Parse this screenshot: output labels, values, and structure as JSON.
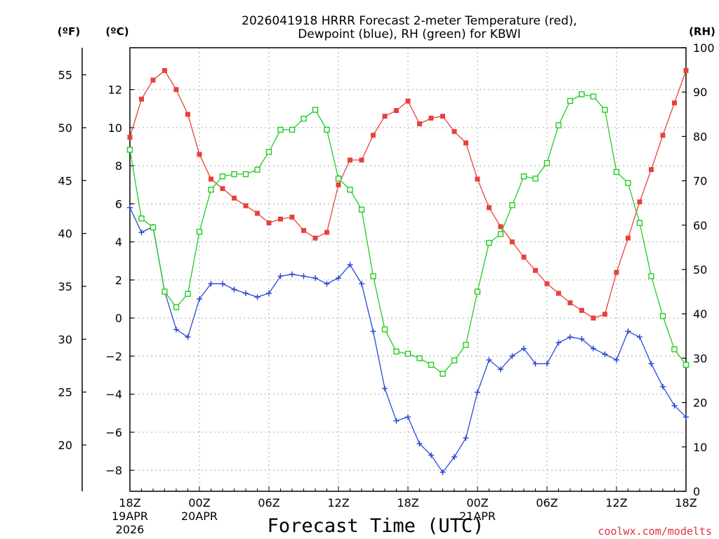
{
  "chart_data": {
    "type": "line",
    "title_lines": [
      "2026041918 HRRR Forecast 2-meter Temperature (red),",
      "Dewpoint (blue), RH (green) for KBWI"
    ],
    "xlabel": "Forecast Time (UTC)",
    "credit": "coolwx.com/modelts",
    "axis_units": {
      "f": "(ºF)",
      "c": "(ºC)",
      "rh": "(RH)"
    },
    "colors": {
      "temperature": "#e8413b",
      "dewpoint": "#2a48d8",
      "rh": "#22cc22",
      "grid": "#aaaaaa",
      "axis": "#000000"
    },
    "x_range_hours": [
      0,
      48
    ],
    "x_ticks": [
      {
        "hour": 0,
        "lines": [
          "18Z",
          "19APR",
          "2026"
        ]
      },
      {
        "hour": 6,
        "lines": [
          "00Z",
          "20APR"
        ]
      },
      {
        "hour": 12,
        "lines": [
          "06Z"
        ]
      },
      {
        "hour": 18,
        "lines": [
          "12Z"
        ]
      },
      {
        "hour": 24,
        "lines": [
          "18Z"
        ]
      },
      {
        "hour": 30,
        "lines": [
          "00Z",
          "21APR"
        ]
      },
      {
        "hour": 36,
        "lines": [
          "06Z"
        ]
      },
      {
        "hour": 42,
        "lines": [
          "12Z"
        ]
      },
      {
        "hour": 48,
        "lines": [
          "18Z"
        ]
      }
    ],
    "c_axis": {
      "range": [
        -9.1,
        14.2
      ],
      "ticks": [
        -8,
        -6,
        -4,
        -2,
        0,
        2,
        4,
        6,
        8,
        10,
        12
      ]
    },
    "f_axis": {
      "ticks": [
        20,
        25,
        30,
        35,
        40,
        45,
        50,
        55
      ]
    },
    "rh_axis": {
      "range": [
        0,
        100
      ],
      "ticks": [
        0,
        10,
        20,
        30,
        40,
        50,
        60,
        70,
        80,
        90,
        100
      ]
    },
    "series": [
      {
        "name": "2-meter Temperature (C)",
        "key": "temperature",
        "marker": "filled-square",
        "values": [
          9.5,
          11.5,
          12.5,
          13.0,
          12.0,
          10.7,
          8.6,
          7.3,
          6.8,
          6.3,
          5.9,
          5.5,
          5.0,
          5.2,
          5.3,
          4.6,
          4.2,
          4.5,
          7.0,
          8.3,
          8.3,
          9.6,
          10.6,
          10.9,
          11.4,
          10.2,
          10.5,
          10.6,
          9.8,
          9.2,
          7.3,
          5.8,
          4.8,
          4.0,
          3.2,
          2.5,
          1.8,
          1.3,
          0.8,
          0.4,
          0.0,
          0.2,
          2.4,
          4.2,
          6.1,
          7.8,
          9.6,
          11.3,
          13.0
        ]
      },
      {
        "name": "Dewpoint (C)",
        "key": "dewpoint",
        "marker": "plus",
        "values": [
          5.8,
          4.5,
          4.8,
          1.4,
          -0.6,
          -1.0,
          1.0,
          1.8,
          1.8,
          1.5,
          1.3,
          1.1,
          1.3,
          2.2,
          2.3,
          2.2,
          2.1,
          1.8,
          2.1,
          2.8,
          1.8,
          -0.7,
          -3.7,
          -5.4,
          -5.2,
          -6.6,
          -7.2,
          -8.1,
          -7.3,
          -6.3,
          -3.9,
          -2.2,
          -2.7,
          -2.0,
          -1.6,
          -2.4,
          -2.4,
          -1.3,
          -1.0,
          -1.1,
          -1.6,
          -1.9,
          -2.2,
          -0.7,
          -1.0,
          -2.4,
          -3.6,
          -4.6,
          -5.2
        ]
      },
      {
        "name": "Relative Humidity (%)",
        "key": "rh",
        "marker": "open-square",
        "values": [
          77.0,
          61.5,
          59.5,
          45.0,
          41.5,
          44.5,
          58.5,
          68.0,
          71.0,
          71.5,
          71.5,
          72.5,
          76.5,
          81.5,
          81.5,
          84.0,
          86.0,
          81.5,
          70.5,
          68.0,
          63.5,
          48.5,
          36.5,
          31.5,
          31.0,
          30.0,
          28.5,
          26.5,
          29.5,
          33.0,
          45.0,
          56.0,
          58.0,
          64.5,
          71.0,
          70.5,
          74.0,
          82.5,
          88.0,
          89.5,
          89.0,
          86.0,
          72.0,
          69.5,
          60.5,
          48.5,
          39.5,
          32.0,
          28.5
        ]
      }
    ]
  }
}
